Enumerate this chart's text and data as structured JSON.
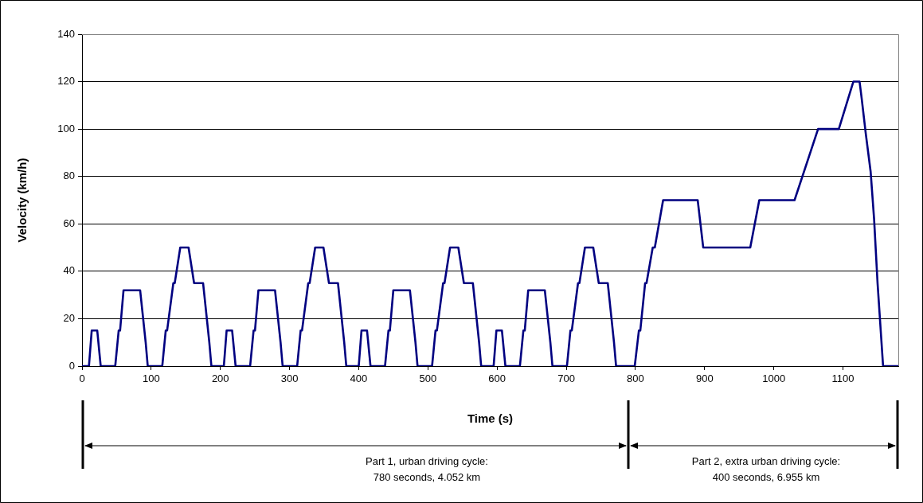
{
  "chart_data": {
    "type": "line",
    "xlabel": "Time (s)",
    "ylabel": "Velocity (km/h)",
    "xlim": [
      0,
      1180
    ],
    "xticks": [
      0,
      100,
      200,
      300,
      400,
      500,
      600,
      700,
      800,
      900,
      1000,
      1100
    ],
    "ylim": [
      0,
      140
    ],
    "yticks": [
      0,
      20,
      40,
      60,
      80,
      100,
      120,
      140
    ],
    "grid": "y",
    "legend": false,
    "marker": "none",
    "line_style": "solid",
    "series": [
      {
        "color": "#000080",
        "x": [
          0,
          10,
          14,
          22,
          27,
          48,
          53,
          55,
          60,
          84,
          92,
          95,
          116,
          121,
          123,
          132,
          134,
          142,
          154,
          162,
          175,
          184,
          187,
          205,
          209,
          217,
          222,
          243,
          248,
          250,
          255,
          279,
          287,
          290,
          311,
          316,
          318,
          327,
          329,
          337,
          349,
          357,
          370,
          379,
          382,
          400,
          404,
          412,
          417,
          438,
          443,
          445,
          450,
          474,
          482,
          485,
          506,
          511,
          513,
          522,
          524,
          532,
          544,
          552,
          565,
          574,
          577,
          595,
          599,
          607,
          612,
          633,
          638,
          640,
          645,
          669,
          677,
          680,
          701,
          706,
          708,
          717,
          719,
          727,
          739,
          747,
          760,
          769,
          772,
          799,
          805,
          807,
          814,
          816,
          825,
          828,
          840,
          890,
          898,
          966,
          979,
          1030,
          1064,
          1094,
          1115,
          1124,
          1127,
          1133,
          1140,
          1145,
          1150,
          1158,
          1180
        ],
        "values": [
          0,
          0,
          15,
          15,
          0,
          0,
          15,
          15,
          32,
          32,
          10,
          0,
          0,
          15,
          15,
          35,
          35,
          50,
          50,
          35,
          35,
          10,
          0,
          0,
          15,
          15,
          0,
          0,
          15,
          15,
          32,
          32,
          10,
          0,
          0,
          15,
          15,
          35,
          35,
          50,
          50,
          35,
          35,
          10,
          0,
          0,
          15,
          15,
          0,
          0,
          15,
          15,
          32,
          32,
          10,
          0,
          0,
          15,
          15,
          35,
          35,
          50,
          50,
          35,
          35,
          10,
          0,
          0,
          15,
          15,
          0,
          0,
          15,
          15,
          32,
          32,
          10,
          0,
          0,
          15,
          15,
          35,
          35,
          50,
          50,
          35,
          35,
          10,
          0,
          0,
          15,
          15,
          35,
          35,
          50,
          50,
          70,
          70,
          50,
          50,
          70,
          70,
          100,
          100,
          120,
          120,
          113,
          98,
          82,
          62,
          35,
          0,
          0
        ]
      }
    ],
    "annotations": [
      "Part 1, urban driving cycle:\n780 seconds, 4.052 km",
      "Part 2, extra urban driving cycle:\n400 seconds, 6.955 km"
    ]
  }
}
